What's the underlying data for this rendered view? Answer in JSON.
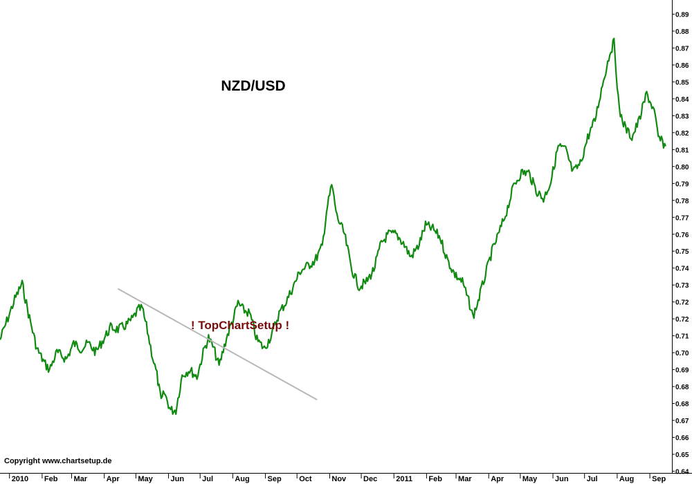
{
  "chart_data": {
    "type": "line",
    "title": "NZD/USD",
    "watermark": "! TopChartSetup !",
    "copyright": "Copyright www.chartsetup.de",
    "ylim": [
      0.64,
      0.9
    ],
    "y_tick_labels": [
      "0.89",
      "0.88",
      "0.87",
      "0.86",
      "0.85",
      "0.84",
      "0.83",
      "0.82",
      "0.81",
      "0.80",
      "0.79",
      "0.78",
      "0.77",
      "0.76",
      "0.75",
      "0.74",
      "0.73",
      "0.72",
      "0.72",
      "0.71",
      "0.70",
      "0.69",
      "0.68",
      "0.68",
      "0.67",
      "0.66",
      "0.65",
      "0.64"
    ],
    "x_tick_labels": [
      "2010",
      "Feb",
      "Mar",
      "Apr",
      "May",
      "Jun",
      "Jul",
      "Aug",
      "Sep",
      "Oct",
      "Nov",
      "Dec",
      "2011",
      "Feb",
      "Mar",
      "Apr",
      "May",
      "Jun",
      "Jul",
      "Aug",
      "Sep"
    ],
    "grid": false,
    "colors": {
      "series": "#118a11",
      "trendline": "#b8b8b8",
      "watermark": "#7a0b0b"
    },
    "series": [
      {
        "x": [
          "2009-12-23",
          "2010-01-06",
          "2010-01-13",
          "2010-01-19",
          "2010-01-27",
          "2010-02-03",
          "2010-02-08",
          "2010-02-15",
          "2010-02-24",
          "2010-03-03",
          "2010-03-10",
          "2010-03-17",
          "2010-03-24",
          "2010-03-31",
          "2010-04-07",
          "2010-04-14",
          "2010-04-21",
          "2010-04-28",
          "2010-05-03",
          "2010-05-07",
          "2010-05-12",
          "2010-05-17",
          "2010-05-21",
          "2010-05-25",
          "2010-05-28",
          "2010-06-03",
          "2010-06-08",
          "2010-06-14",
          "2010-06-21",
          "2010-06-28",
          "2010-07-05",
          "2010-07-09",
          "2010-07-14",
          "2010-07-19",
          "2010-07-26",
          "2010-08-02",
          "2010-08-06",
          "2010-08-11",
          "2010-08-17",
          "2010-08-24",
          "2010-08-31",
          "2010-09-07",
          "2010-09-14",
          "2010-09-21",
          "2010-09-28",
          "2010-10-04",
          "2010-10-11",
          "2010-10-18",
          "2010-10-25",
          "2010-10-29",
          "2010-11-03",
          "2010-11-08",
          "2010-11-15",
          "2010-11-22",
          "2010-11-29",
          "2010-12-06",
          "2010-12-13",
          "2010-12-20",
          "2010-12-27",
          "2011-01-03",
          "2011-01-10",
          "2011-01-17",
          "2011-01-24",
          "2011-01-31",
          "2011-02-07",
          "2011-02-14",
          "2011-02-21",
          "2011-02-28",
          "2011-03-07",
          "2011-03-14",
          "2011-03-17",
          "2011-03-21",
          "2011-03-28",
          "2011-04-04",
          "2011-04-11",
          "2011-04-18",
          "2011-04-25",
          "2011-05-02",
          "2011-05-09",
          "2011-05-16",
          "2011-05-23",
          "2011-05-30",
          "2011-06-06",
          "2011-06-13",
          "2011-06-20",
          "2011-06-27",
          "2011-07-04",
          "2011-07-11",
          "2011-07-18",
          "2011-07-25",
          "2011-07-29",
          "2011-08-03",
          "2011-08-09",
          "2011-08-15",
          "2011-08-22",
          "2011-08-29",
          "2011-09-05",
          "2011-09-09",
          "2011-09-16"
        ],
        "values": [
          0.705,
          0.728,
          0.737,
          0.72,
          0.7,
          0.692,
          0.688,
          0.698,
          0.694,
          0.703,
          0.7,
          0.703,
          0.698,
          0.705,
          0.712,
          0.711,
          0.713,
          0.717,
          0.722,
          0.723,
          0.71,
          0.695,
          0.685,
          0.67,
          0.675,
          0.665,
          0.665,
          0.685,
          0.688,
          0.684,
          0.7,
          0.706,
          0.7,
          0.69,
          0.706,
          0.718,
          0.726,
          0.722,
          0.72,
          0.705,
          0.7,
          0.708,
          0.72,
          0.727,
          0.736,
          0.744,
          0.747,
          0.75,
          0.758,
          0.778,
          0.793,
          0.775,
          0.765,
          0.745,
          0.735,
          0.738,
          0.745,
          0.76,
          0.765,
          0.765,
          0.76,
          0.752,
          0.758,
          0.77,
          0.768,
          0.763,
          0.75,
          0.742,
          0.738,
          0.725,
          0.718,
          0.725,
          0.74,
          0.755,
          0.766,
          0.778,
          0.793,
          0.8,
          0.8,
          0.79,
          0.785,
          0.795,
          0.815,
          0.813,
          0.8,
          0.805,
          0.82,
          0.83,
          0.85,
          0.868,
          0.874,
          0.835,
          0.825,
          0.82,
          0.83,
          0.845,
          0.835,
          0.82,
          0.815
        ]
      }
    ],
    "trendline": {
      "from": {
        "x": "2010-04-14",
        "y": 0.734
      },
      "to": {
        "x": "2010-10-20",
        "y": 0.671
      }
    }
  }
}
